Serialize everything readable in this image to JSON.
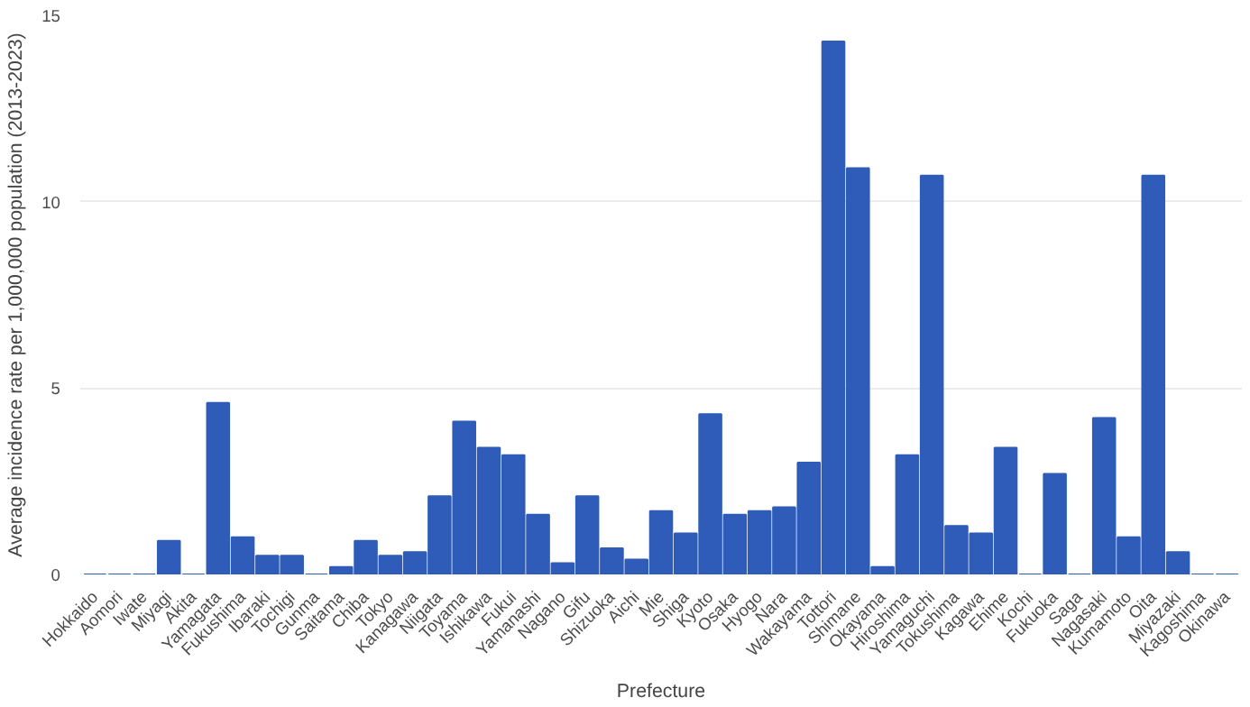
{
  "chart_data": {
    "type": "bar",
    "xlabel": "Prefecture",
    "ylabel": "Average incidence rate per 1,000,000 population (2013-2023)",
    "categories": [
      "Hokkaido",
      "Aomori",
      "Iwate",
      "Miyagi",
      "Akita",
      "Yamagata",
      "Fukushima",
      "Ibaraki",
      "Tochigi",
      "Gunma",
      "Saitama",
      "Chiba",
      "Tokyo",
      "Kanagawa",
      "Niigata",
      "Toyama",
      "Ishikawa",
      "Fukui",
      "Yamanashi",
      "Nagano",
      "Gifu",
      "Shizuoka",
      "Aichi",
      "Mie",
      "Shiga",
      "Kyoto",
      "Osaka",
      "Hyogo",
      "Nara",
      "Wakayama",
      "Tottori",
      "Shimane",
      "Okayama",
      "Hiroshima",
      "Yamaguchi",
      "Tokushima",
      "Kagawa",
      "Ehime",
      "Kochi",
      "Fukuoka",
      "Saga",
      "Nagasaki",
      "Kumamoto",
      "Oita",
      "Miyazaki",
      "Kagoshima",
      "Okinawa"
    ],
    "values": [
      0,
      0,
      0,
      0.9,
      0,
      4.6,
      1.0,
      0.5,
      0.5,
      0,
      0.2,
      0.9,
      0.5,
      0.6,
      2.1,
      4.1,
      3.4,
      3.2,
      1.6,
      0.3,
      2.1,
      0.7,
      0.4,
      1.7,
      1.1,
      4.3,
      1.6,
      1.7,
      1.8,
      3.0,
      14.3,
      10.9,
      0.2,
      3.2,
      10.7,
      1.3,
      1.1,
      3.4,
      0,
      2.7,
      0,
      4.2,
      1.0,
      10.7,
      0.6,
      0,
      0
    ],
    "color": "#2e5cb8",
    "ylim": [
      0,
      15
    ],
    "yticks": [
      0,
      5,
      10,
      15
    ],
    "grid": "y"
  }
}
